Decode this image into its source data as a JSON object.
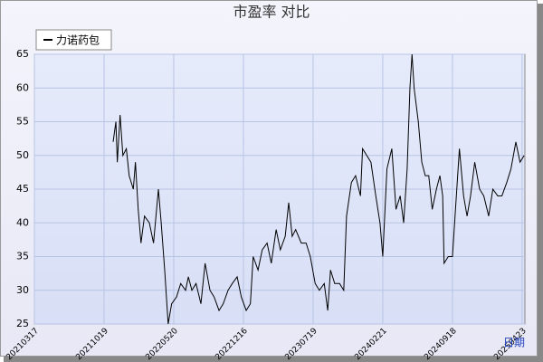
{
  "chart_data": {
    "type": "line",
    "title": "市盈率  对比",
    "x_label": "日期",
    "xlim": [
      0,
      7.04
    ],
    "xticks": [
      {
        "value": 0,
        "label": "20210317"
      },
      {
        "value": 1,
        "label": "20211019"
      },
      {
        "value": 2,
        "label": "20220520"
      },
      {
        "value": 3,
        "label": "20221216"
      },
      {
        "value": 4,
        "label": "20230719"
      },
      {
        "value": 5,
        "label": "20240221"
      },
      {
        "value": 6,
        "label": "20240918"
      },
      {
        "value": 7,
        "label": "20250423"
      }
    ],
    "ylim": [
      25,
      65
    ],
    "yticks": [
      25,
      30,
      35,
      40,
      45,
      50,
      55,
      60,
      65
    ],
    "grid": true,
    "series": [
      {
        "name": "力诺药包",
        "color": "#000000",
        "x": [
          1.13,
          1.17,
          1.19,
          1.23,
          1.27,
          1.32,
          1.36,
          1.42,
          1.45,
          1.49,
          1.53,
          1.58,
          1.65,
          1.71,
          1.78,
          1.82,
          1.87,
          1.92,
          1.97,
          2.04,
          2.1,
          2.17,
          2.21,
          2.26,
          2.32,
          2.39,
          2.45,
          2.52,
          2.58,
          2.65,
          2.71,
          2.78,
          2.84,
          2.91,
          2.97,
          3.04,
          3.1,
          3.14,
          3.21,
          3.27,
          3.34,
          3.4,
          3.47,
          3.53,
          3.6,
          3.65,
          3.7,
          3.75,
          3.83,
          3.9,
          3.96,
          4.03,
          4.09,
          4.16,
          4.21,
          4.25,
          4.31,
          4.38,
          4.44,
          4.48,
          4.55,
          4.61,
          4.68,
          4.71,
          4.77,
          4.83,
          4.9,
          4.96,
          5.0,
          5.06,
          5.13,
          5.19,
          5.25,
          5.3,
          5.35,
          5.39,
          5.42,
          5.45,
          5.51,
          5.56,
          5.61,
          5.66,
          5.71,
          5.77,
          5.82,
          5.86,
          5.88,
          5.94,
          6.0,
          6.05,
          6.1,
          6.16,
          6.21,
          6.26,
          6.32,
          6.39,
          6.45,
          6.52,
          6.58,
          6.65,
          6.71,
          6.78,
          6.84,
          6.91,
          6.97,
          7.03
        ],
        "values": [
          52,
          55,
          49,
          56,
          50,
          51,
          47,
          45,
          49,
          42,
          37,
          41,
          40,
          37,
          45,
          40,
          33,
          25,
          28,
          29,
          31,
          30,
          32,
          30,
          31,
          28,
          34,
          30,
          29,
          27,
          28,
          30,
          31,
          32,
          29,
          27,
          28,
          35,
          33,
          36,
          37,
          34,
          39,
          36,
          38,
          43,
          38,
          39,
          37,
          37,
          35,
          31,
          30,
          31,
          27,
          33,
          31,
          31,
          30,
          41,
          46,
          47,
          44,
          51,
          50,
          49,
          44,
          40,
          35,
          48,
          51,
          42,
          44,
          40,
          48,
          60,
          65,
          60,
          55,
          49,
          47,
          47,
          42,
          45,
          47,
          44,
          34,
          35,
          35,
          43,
          51,
          44,
          41,
          44,
          49,
          45,
          44,
          41,
          45,
          44,
          44,
          46,
          48,
          52,
          49,
          50
        ]
      }
    ]
  }
}
